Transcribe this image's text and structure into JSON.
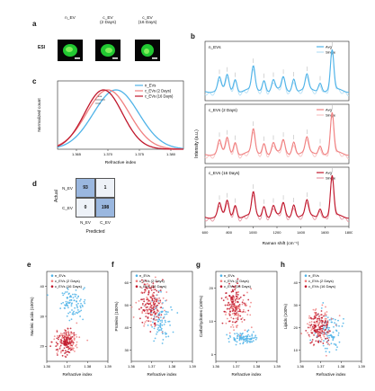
{
  "colors": {
    "n": "#4fb3e8",
    "c2": "#f08080",
    "c16": "#c0172c",
    "conf_blue": "#9ab7df",
    "conf_pale": "#eef2f8"
  },
  "panel_a": {
    "letter": "a",
    "row_label": "ESI",
    "captions": [
      [
        "n_EV"
      ],
      [
        "c_EV",
        "(2 Days)"
      ],
      [
        "c_EV",
        "(16 Days)"
      ]
    ]
  },
  "panel_b": {
    "letter": "b",
    "ylabel": "Intensity (a.u.)",
    "xlabel": "Raman shift (cm⁻¹)",
    "xticks": [
      "600",
      "800",
      "1000",
      "1200",
      "1400",
      "1600",
      "1800"
    ],
    "legend": [
      "Avg",
      "Single"
    ],
    "subpanels": [
      "n_EVs",
      "c_EVs (2 Days)",
      "c_EVs (16 Days)"
    ]
  },
  "panel_c": {
    "letter": "c",
    "ylabel": "Normalized count",
    "xlabel": "Refractive index",
    "xticks": [
      "1.365",
      "1.370",
      "1.375",
      "1.380"
    ],
    "legend": [
      "n_EVs",
      "c_EVs (2 Days)",
      "c_EVs (16 Days)"
    ],
    "sig": "***"
  },
  "panel_d": {
    "letter": "d",
    "row_axis": "Actual",
    "col_axis": "Predicted",
    "row_labels": [
      "N_EV",
      "C_EV"
    ],
    "col_labels": [
      "N_EV",
      "C_EV"
    ],
    "cells": [
      [
        "93",
        "1"
      ],
      [
        "0",
        "198"
      ]
    ]
  },
  "scatter_panels": [
    {
      "letter": "e",
      "ylabel": "Nucleic acids (100%)",
      "yticks": [
        "40",
        "30",
        "20"
      ]
    },
    {
      "letter": "f",
      "ylabel": "Proteins (100%)",
      "yticks": [
        "60",
        "50",
        "40",
        "30"
      ]
    },
    {
      "letter": "g",
      "ylabel": "Carbohydrates (100%)",
      "yticks": [
        "20",
        "10",
        "0"
      ]
    },
    {
      "letter": "h",
      "ylabel": "Lipids (100%)",
      "yticks": [
        "40",
        "30",
        "20",
        "10"
      ]
    }
  ],
  "scatter_common": {
    "xlabel": "Refractive index",
    "xticks": [
      "1.36",
      "1.37",
      "1.38",
      "1.39"
    ],
    "legend": [
      "n_EVs",
      "c_EVs (2 Days)",
      "c_EVs (16 Days)"
    ]
  },
  "chart_data": [
    {
      "type": "line",
      "title": "",
      "xlabel": "Refractive index",
      "ylabel": "Normalized count",
      "xlim": [
        1.362,
        1.382
      ],
      "series": [
        {
          "name": "n_EVs",
          "mean": 1.3713,
          "sd": 0.0036
        },
        {
          "name": "c_EVs (2 Days)",
          "mean": 1.37,
          "sd": 0.0034
        },
        {
          "name": "c_EVs (16 Days)",
          "mean": 1.3693,
          "sd": 0.003
        }
      ]
    },
    {
      "type": "line",
      "title": "",
      "xlabel": "Raman shift (cm⁻¹)",
      "ylabel": "Intensity (a.u.)",
      "xlim": [
        600,
        1800
      ],
      "peaks": [
        {
          "subpanel": "n_EVs",
          "centers": [
            720,
            785,
            852,
            1003,
            1092,
            1170,
            1253,
            1340,
            1450,
            1560,
            1660
          ]
        },
        {
          "subpanel": "c_EVs (2 Days)",
          "centers": [
            720,
            785,
            852,
            1003,
            1092,
            1170,
            1253,
            1340,
            1450,
            1560,
            1660
          ]
        },
        {
          "subpanel": "c_EVs (16 Days)",
          "centers": [
            720,
            785,
            852,
            1003,
            1092,
            1170,
            1253,
            1340,
            1450,
            1560,
            1660
          ]
        }
      ]
    },
    {
      "type": "table",
      "title": "",
      "row_labels": [
        "N_EV",
        "C_EV"
      ],
      "col_labels": [
        "N_EV",
        "C_EV"
      ],
      "values": [
        [
          93,
          1
        ],
        [
          0,
          198
        ]
      ]
    },
    {
      "type": "scatter",
      "ylabel": "Nucleic acids (100%)",
      "xlabel": "Refractive index",
      "xlim": [
        1.36,
        1.39
      ],
      "clusters": [
        {
          "name": "n_EVs",
          "x_center": 1.373,
          "y_center": 34,
          "x_sd": 0.003,
          "y_sd": 2.5
        },
        {
          "name": "c_EVs (2 Days)",
          "x_center": 1.37,
          "y_center": 22,
          "x_sd": 0.003,
          "y_sd": 2
        },
        {
          "name": "c_EVs (16 Days)",
          "x_center": 1.369,
          "y_center": 21,
          "x_sd": 0.0025,
          "y_sd": 2
        }
      ]
    },
    {
      "type": "scatter",
      "ylabel": "Proteins (100%)",
      "xlabel": "Refractive index",
      "xlim": [
        1.36,
        1.39
      ],
      "clusters": [
        {
          "name": "n_EVs",
          "x_center": 1.374,
          "y_center": 45,
          "x_sd": 0.003,
          "y_sd": 5
        },
        {
          "name": "c_EVs (2 Days)",
          "x_center": 1.37,
          "y_center": 50,
          "x_sd": 0.003,
          "y_sd": 5
        },
        {
          "name": "c_EVs (16 Days)",
          "x_center": 1.369,
          "y_center": 51,
          "x_sd": 0.0025,
          "y_sd": 5
        }
      ]
    },
    {
      "type": "scatter",
      "ylabel": "Carbohydrates (100%)",
      "xlabel": "Refractive index",
      "xlim": [
        1.36,
        1.39
      ],
      "clusters": [
        {
          "name": "n_EVs",
          "x_center": 1.374,
          "y_center": 5,
          "x_sd": 0.003,
          "y_sd": 1
        },
        {
          "name": "c_EVs (2 Days)",
          "x_center": 1.37,
          "y_center": 14,
          "x_sd": 0.003,
          "y_sd": 3
        },
        {
          "name": "c_EVs (16 Days)",
          "x_center": 1.369,
          "y_center": 15,
          "x_sd": 0.0025,
          "y_sd": 3
        }
      ]
    },
    {
      "type": "scatter",
      "ylabel": "Lipids (100%)",
      "xlabel": "Refractive index",
      "xlim": [
        1.36,
        1.39
      ],
      "clusters": [
        {
          "name": "n_EVs",
          "x_center": 1.374,
          "y_center": 18,
          "x_sd": 0.003,
          "y_sd": 4
        },
        {
          "name": "c_EVs (2 Days)",
          "x_center": 1.37,
          "y_center": 21,
          "x_sd": 0.003,
          "y_sd": 4
        },
        {
          "name": "c_EVs (16 Days)",
          "x_center": 1.369,
          "y_center": 20,
          "x_sd": 0.0025,
          "y_sd": 4
        }
      ]
    }
  ]
}
